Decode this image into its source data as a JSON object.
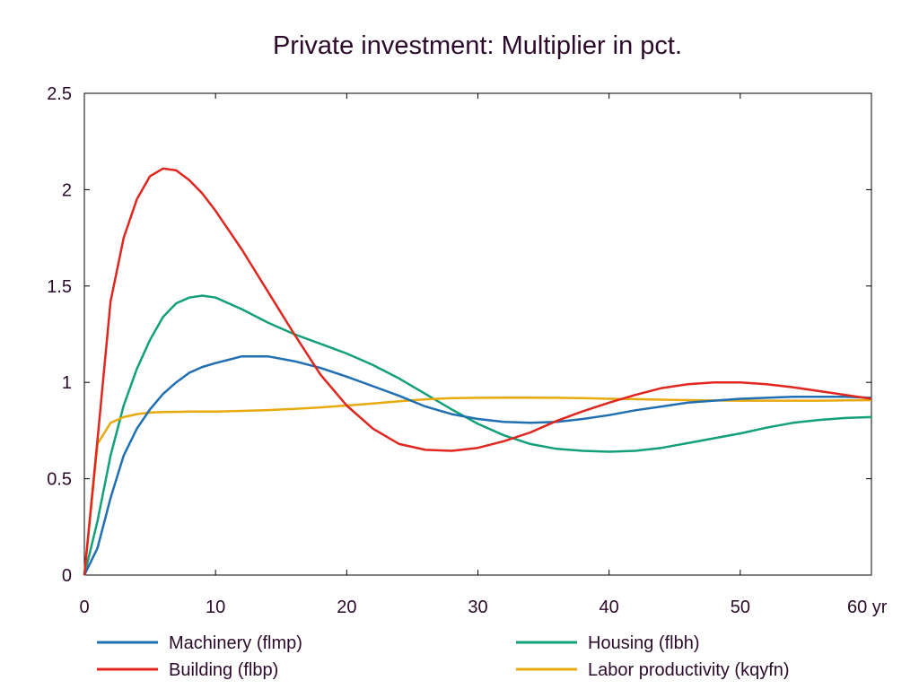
{
  "chart_data": {
    "type": "line",
    "title": "Private investment: Multiplier in pct.",
    "xlabel": "",
    "ylabel": "",
    "xlim": [
      0,
      60
    ],
    "ylim": [
      0,
      2.5
    ],
    "grid": false,
    "legend_position": "bottom",
    "x_ticks": [
      0,
      10,
      20,
      30,
      40,
      50,
      60
    ],
    "x_tick_labels": [
      "0",
      "10",
      "20",
      "30",
      "40",
      "50",
      "60 yr"
    ],
    "y_ticks": [
      0,
      0.5,
      1,
      1.5,
      2,
      2.5
    ],
    "y_tick_labels": [
      "0",
      "0.5",
      "1",
      "1.5",
      "2",
      "2.5"
    ],
    "x": [
      0,
      1,
      2,
      3,
      4,
      5,
      6,
      7,
      8,
      9,
      10,
      12,
      14,
      16,
      18,
      20,
      22,
      24,
      26,
      28,
      30,
      32,
      34,
      36,
      38,
      40,
      42,
      44,
      46,
      48,
      50,
      52,
      54,
      56,
      58,
      60
    ],
    "series": [
      {
        "name": "Machinery (flmp)",
        "color": "#1f6fb2",
        "values": [
          0,
          0.14,
          0.4,
          0.62,
          0.76,
          0.86,
          0.94,
          1.0,
          1.05,
          1.08,
          1.1,
          1.135,
          1.135,
          1.11,
          1.075,
          1.03,
          0.98,
          0.93,
          0.875,
          0.835,
          0.81,
          0.795,
          0.79,
          0.795,
          0.81,
          0.83,
          0.855,
          0.875,
          0.895,
          0.905,
          0.915,
          0.92,
          0.925,
          0.925,
          0.925,
          0.92
        ]
      },
      {
        "name": "Building (flbp)",
        "color": "#e0261e",
        "values": [
          0,
          0.7,
          1.42,
          1.75,
          1.95,
          2.07,
          2.11,
          2.1,
          2.05,
          1.98,
          1.89,
          1.69,
          1.47,
          1.25,
          1.04,
          0.88,
          0.76,
          0.68,
          0.65,
          0.645,
          0.66,
          0.695,
          0.74,
          0.8,
          0.85,
          0.895,
          0.935,
          0.97,
          0.99,
          1.0,
          1.0,
          0.99,
          0.975,
          0.955,
          0.935,
          0.915
        ]
      },
      {
        "name": "Housing (flbh)",
        "color": "#12a07a",
        "values": [
          0,
          0.28,
          0.62,
          0.88,
          1.07,
          1.22,
          1.34,
          1.41,
          1.44,
          1.45,
          1.44,
          1.38,
          1.31,
          1.25,
          1.2,
          1.15,
          1.09,
          1.02,
          0.94,
          0.86,
          0.785,
          0.725,
          0.68,
          0.655,
          0.645,
          0.64,
          0.645,
          0.66,
          0.685,
          0.71,
          0.735,
          0.765,
          0.79,
          0.805,
          0.815,
          0.82
        ]
      },
      {
        "name": "Labor productivity (kqyfn)",
        "color": "#e8a90d",
        "values": [
          0,
          0.68,
          0.79,
          0.82,
          0.835,
          0.843,
          0.846,
          0.847,
          0.848,
          0.848,
          0.848,
          0.852,
          0.856,
          0.862,
          0.87,
          0.88,
          0.89,
          0.902,
          0.912,
          0.918,
          0.92,
          0.921,
          0.921,
          0.92,
          0.918,
          0.915,
          0.913,
          0.91,
          0.908,
          0.906,
          0.905,
          0.905,
          0.905,
          0.905,
          0.907,
          0.908
        ]
      }
    ]
  }
}
